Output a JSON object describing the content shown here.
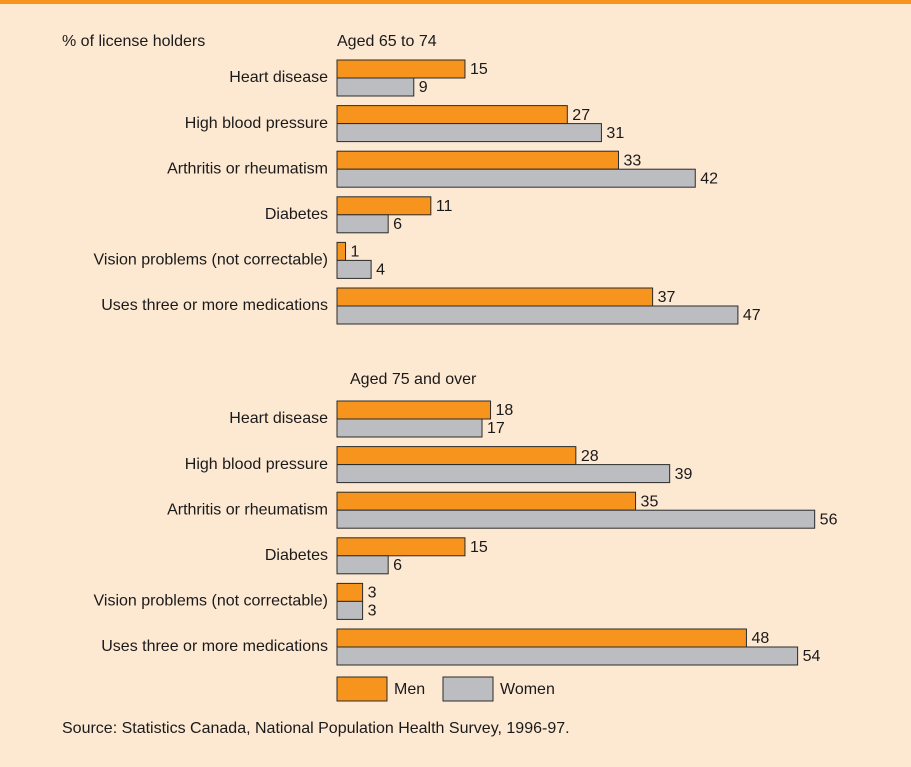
{
  "chart_data": [
    {
      "type": "bar",
      "orientation": "horizontal",
      "y_label": "% of license holders",
      "title": "Aged 65 to 74",
      "categories": [
        "Heart disease",
        "High blood pressure",
        "Arthritis or rheumatism",
        "Diabetes",
        "Vision problems (not correctable)",
        "Uses three or more medications"
      ],
      "series": [
        {
          "name": "Men",
          "color": "#f7941d",
          "values": [
            15,
            27,
            33,
            11,
            1,
            37
          ]
        },
        {
          "name": "Women",
          "color": "#bcbdc0",
          "values": [
            9,
            31,
            42,
            6,
            4,
            47
          ]
        }
      ]
    },
    {
      "type": "bar",
      "orientation": "horizontal",
      "title": "Aged 75 and over",
      "categories": [
        "Heart disease",
        "High blood pressure",
        "Arthritis or rheumatism",
        "Diabetes",
        "Vision problems (not correctable)",
        "Uses three or more medications"
      ],
      "series": [
        {
          "name": "Men",
          "color": "#f7941d",
          "values": [
            18,
            28,
            35,
            15,
            3,
            48
          ]
        },
        {
          "name": "Women",
          "color": "#bcbdc0",
          "values": [
            17,
            39,
            56,
            6,
            3,
            54
          ]
        }
      ]
    }
  ],
  "source": "Source: Statistics Canada, National Population Health Survey, 1996-97."
}
